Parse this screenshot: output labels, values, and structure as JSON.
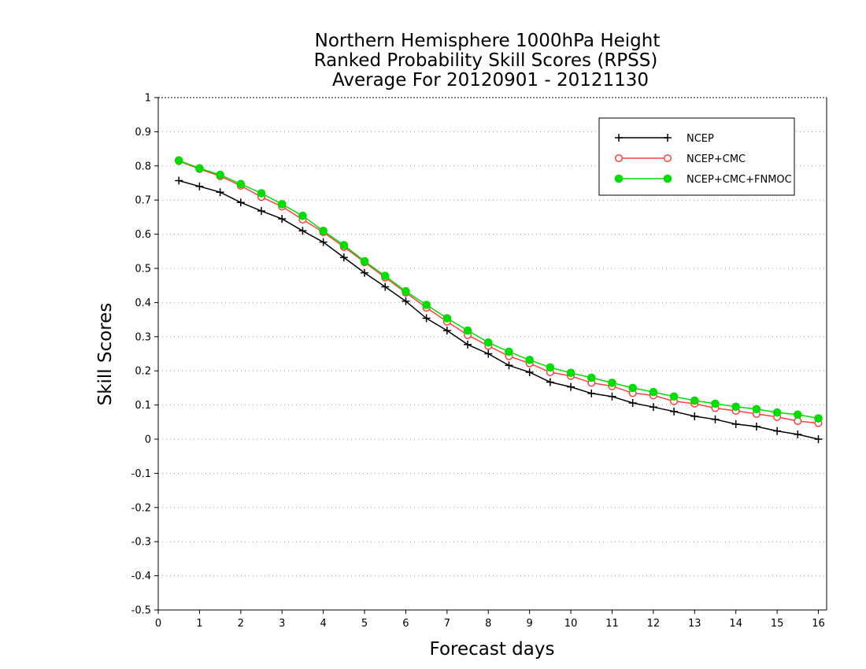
{
  "chart_data": {
    "type": "line",
    "title": [
      "Northern Hemisphere 1000hPa Height",
      "Ranked Probability Skill Scores (RPSS)",
      "Average For 20120901 - 20121130"
    ],
    "xlabel": "Forecast days",
    "ylabel": "Skill Scores",
    "xlim": [
      0,
      16.2
    ],
    "ylim": [
      -0.5,
      1
    ],
    "x_ticks": [
      0,
      1,
      2,
      3,
      4,
      5,
      6,
      7,
      8,
      9,
      10,
      11,
      12,
      13,
      14,
      15,
      16
    ],
    "x_tick_labels": [
      "0",
      "1",
      "2",
      "3",
      "4",
      "5",
      "6",
      "7",
      "8",
      "9",
      "10",
      "11",
      "12",
      "13",
      "14",
      "15",
      "16"
    ],
    "y_ticks": [
      -0.5,
      -0.4,
      -0.3,
      -0.2,
      -0.1,
      0,
      0.1,
      0.2,
      0.3,
      0.4,
      0.5,
      0.6,
      0.7,
      0.8,
      0.9,
      1
    ],
    "y_tick_labels": [
      "-0.5",
      "-0.4",
      "-0.3",
      "-0.2",
      "-0.1",
      "0",
      "0.1",
      "0.2",
      "0.3",
      "0.4",
      "0.5",
      "0.6",
      "0.7",
      "0.8",
      "0.9",
      "1"
    ],
    "grid": "horizontal dotted",
    "legend_position": "top-right",
    "x": [
      0.5,
      1,
      1.5,
      2,
      2.5,
      3,
      3.5,
      4,
      4.5,
      5,
      5.5,
      6,
      6.5,
      7,
      7.5,
      8,
      8.5,
      9,
      9.5,
      10,
      10.5,
      11,
      11.5,
      12,
      12.5,
      13,
      13.5,
      14,
      14.5,
      15,
      15.5,
      16
    ],
    "series": [
      {
        "name": "NCEP",
        "color": "#000000",
        "marker": "plus",
        "values": [
          0.757,
          0.74,
          0.723,
          0.693,
          0.668,
          0.645,
          0.61,
          0.577,
          0.532,
          0.487,
          0.446,
          0.404,
          0.354,
          0.318,
          0.277,
          0.25,
          0.216,
          0.196,
          0.167,
          0.153,
          0.134,
          0.125,
          0.106,
          0.094,
          0.081,
          0.067,
          0.058,
          0.044,
          0.037,
          0.024,
          0.014,
          0.0
        ]
      },
      {
        "name": "NCEP+CMC",
        "color": "#ff4040",
        "marker": "open-circle",
        "values": [
          0.814,
          0.791,
          0.77,
          0.742,
          0.709,
          0.681,
          0.643,
          0.606,
          0.563,
          0.518,
          0.473,
          0.429,
          0.385,
          0.344,
          0.305,
          0.273,
          0.243,
          0.222,
          0.196,
          0.185,
          0.165,
          0.155,
          0.135,
          0.128,
          0.111,
          0.104,
          0.091,
          0.083,
          0.074,
          0.065,
          0.053,
          0.047
        ]
      },
      {
        "name": "NCEP+CMC+FNMOC",
        "color": "#00dd00",
        "marker": "filled-circle",
        "values": [
          0.816,
          0.793,
          0.774,
          0.747,
          0.72,
          0.688,
          0.654,
          0.61,
          0.568,
          0.521,
          0.478,
          0.433,
          0.393,
          0.354,
          0.318,
          0.283,
          0.256,
          0.232,
          0.21,
          0.194,
          0.18,
          0.165,
          0.15,
          0.138,
          0.125,
          0.113,
          0.104,
          0.095,
          0.088,
          0.078,
          0.072,
          0.061
        ]
      }
    ]
  }
}
